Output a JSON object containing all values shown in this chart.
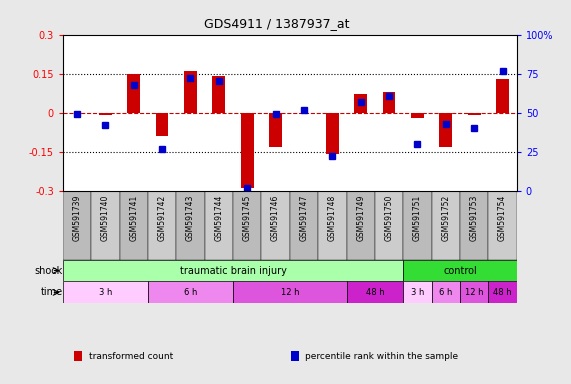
{
  "title": "GDS4911 / 1387937_at",
  "samples": [
    "GSM591739",
    "GSM591740",
    "GSM591741",
    "GSM591742",
    "GSM591743",
    "GSM591744",
    "GSM591745",
    "GSM591746",
    "GSM591747",
    "GSM591748",
    "GSM591749",
    "GSM591750",
    "GSM591751",
    "GSM591752",
    "GSM591753",
    "GSM591754"
  ],
  "bar_values": [
    0.0,
    -0.01,
    0.15,
    -0.09,
    0.16,
    0.14,
    -0.29,
    -0.13,
    0.0,
    -0.16,
    0.07,
    0.08,
    -0.02,
    -0.13,
    -0.01,
    0.13
  ],
  "blue_values": [
    49,
    42,
    68,
    27,
    72,
    70,
    2,
    49,
    52,
    22,
    57,
    61,
    30,
    43,
    40,
    77
  ],
  "ylim_left": [
    -0.3,
    0.3
  ],
  "ylim_right": [
    0,
    100
  ],
  "yticks_left": [
    -0.3,
    -0.15,
    0.0,
    0.15,
    0.3
  ],
  "yticks_right": [
    0,
    25,
    50,
    75,
    100
  ],
  "ytick_labels_left": [
    "-0.3",
    "-0.15",
    "0",
    "0.15",
    "0.3"
  ],
  "ytick_labels_right": [
    "0",
    "25",
    "50",
    "75",
    "100%"
  ],
  "hlines": [
    0.15,
    -0.15
  ],
  "bar_color": "#CC0000",
  "blue_color": "#0000CC",
  "zero_line_color": "#CC0000",
  "shock_groups": [
    {
      "label": "traumatic brain injury",
      "start": 0,
      "end": 12,
      "color": "#AAFFAA"
    },
    {
      "label": "control",
      "start": 12,
      "end": 16,
      "color": "#33DD33"
    }
  ],
  "time_groups": [
    {
      "label": "3 h",
      "start": 0,
      "end": 3,
      "color": "#FFCCFF"
    },
    {
      "label": "6 h",
      "start": 3,
      "end": 6,
      "color": "#EE88EE"
    },
    {
      "label": "12 h",
      "start": 6,
      "end": 10,
      "color": "#DD55DD"
    },
    {
      "label": "48 h",
      "start": 10,
      "end": 12,
      "color": "#CC22CC"
    },
    {
      "label": "3 h",
      "start": 12,
      "end": 13,
      "color": "#FFCCFF"
    },
    {
      "label": "6 h",
      "start": 13,
      "end": 14,
      "color": "#EE88EE"
    },
    {
      "label": "12 h",
      "start": 14,
      "end": 15,
      "color": "#DD55DD"
    },
    {
      "label": "48 h",
      "start": 15,
      "end": 16,
      "color": "#CC22CC"
    }
  ],
  "shock_label": "shock",
  "time_label": "time",
  "legend": [
    {
      "color": "#CC0000",
      "label": "transformed count"
    },
    {
      "color": "#0000CC",
      "label": "percentile rank within the sample"
    }
  ],
  "sample_bg_color": "#CCCCCC",
  "fig_bg_color": "#E8E8E8",
  "plot_bg": "#FFFFFF"
}
